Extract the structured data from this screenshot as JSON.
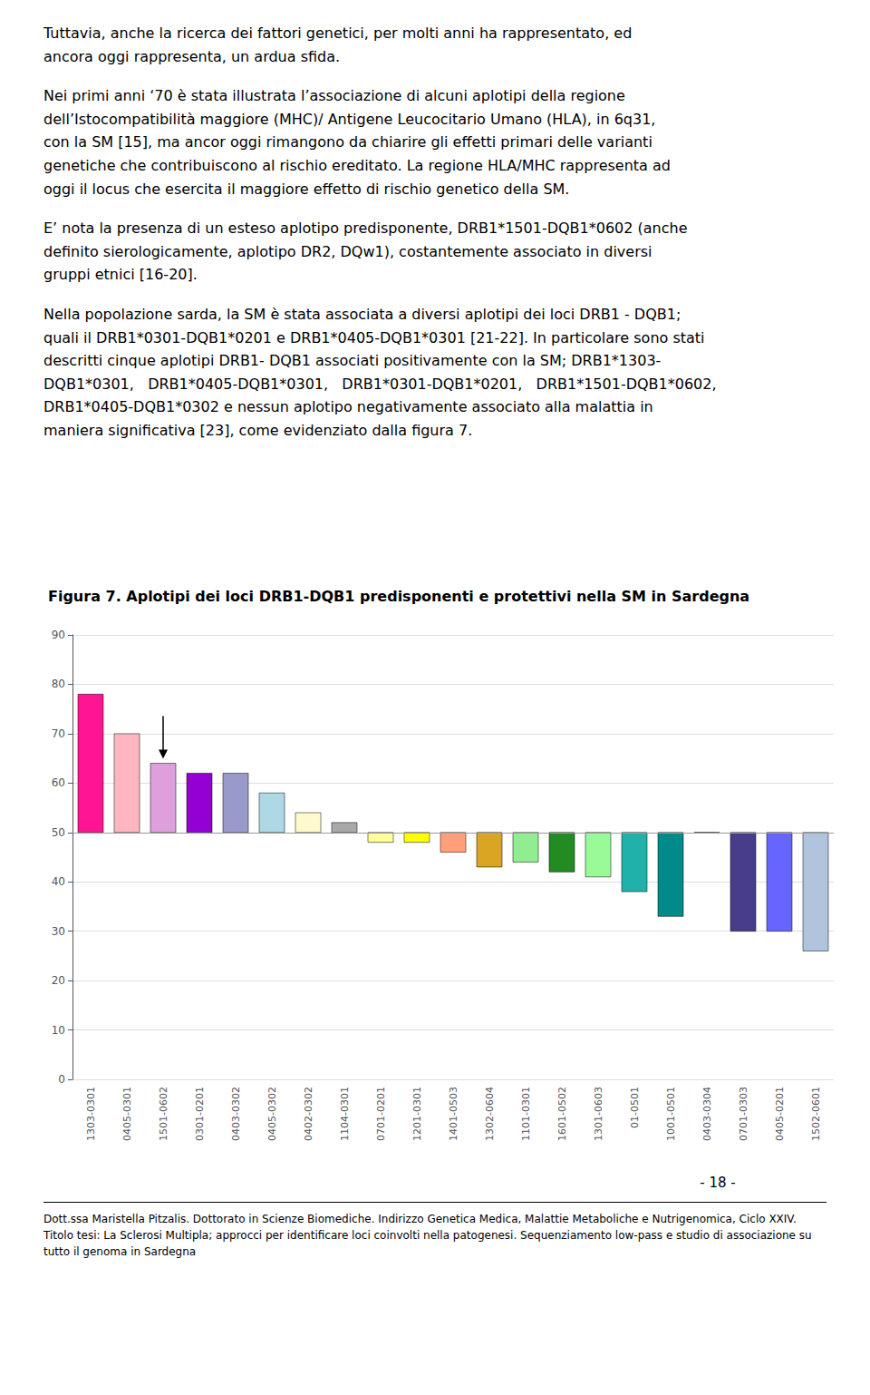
{
  "text": [
    "Tuttavia, anche la ricerca dei fattori genetici, per molti anni ha rappresentato, ed\nancora oggi rappresenta, un ardua sfida.",
    "Nei primi anni ‘70 è stata illustrata l’associazione di alcuni aplotipi della regione\ndell’Istocompatibilità maggiore (MHC)/ Antigene Leucocitario Umano (HLA), in 6q31,\ncon la SM [15], ma ancor oggi rimangono da chiarire gli effetti primari delle varianti\ngenetiche che contribuiscono al rischio ereditato. La regione HLA/MHC rappresenta ad\noggi il locus che esercita il maggiore effetto di rischio genetico della SM.",
    "E’ nota la presenza di un esteso aplotipo predisponente, DRB1*1501-DQB1*0602 (anche\ndefinito sierologicamente, aplotipo DR2, DQw1), costantemente associato in diversi\ngruppi etnici [16-20].",
    "Nella popolazione sarda, la SM è stata associata a diversi aplotipi dei loci DRB1 - DQB1;\nquali il DRB1*0301-DQB1*0201 e DRB1*0405-DQB1*0301 [21-22]. In particolare sono stati\ndescritti cinque aplotipi DRB1- DQB1 associati positivamente con la SM; DRB1*1303-\nDQB1*0301,   DRB1*0405-DQB1*0301,   DRB1*0301-DQB1*0201,   DRB1*1501-DQB1*0602,\nDRB1*0405-DQB1*0302 e nessun aplotipo negativamente associato alla malattia in\nmaniera significativa [23], come evidenziato dalla figura 7."
  ],
  "page_number": "- 18 -",
  "footer": "Dott.ssa Maristella Pitzalis. Dottorato in Scienze Biomediche. Indirizzo Genetica Medica, Malattie Metaboliche e Nutrigenomica, Ciclo XXIV. Titolo tesi: La Sclerosi Multipla; approcci per identificare loci coinvolti nella patogenesi. Sequenziamento low-pass e studio di associazione su tutto il genoma in Sardegna",
  "chart_data": {
    "type": "bar",
    "title": "Figura 7. Aplotipi dei loci DRB1-DQB1 predisponenti e protettivi nella SM in Sardegna",
    "categories": [
      "1303-0301",
      "0405-0301",
      "1501-0602",
      "0301-0201",
      "0403-0302",
      "0405-0302",
      "0402-0302",
      "1104-0301",
      "0701-0201",
      "1201-0301",
      "1401-0503",
      "1302-0604",
      "1101-0301",
      "1601-0502",
      "1301-0603",
      "01-0501",
      "1001-0501",
      "0403-0304",
      "0701-0303",
      "0405-0201",
      "1502-0601"
    ],
    "values": [
      78,
      70,
      64,
      62,
      62,
      58,
      54,
      52,
      48,
      48,
      46,
      43,
      44,
      42,
      41,
      38,
      33,
      50,
      30,
      30,
      26
    ],
    "colors": [
      "#FF1493",
      "#FFB6C1",
      "#DDA0DD",
      "#9400D3",
      "#9999CC",
      "#ADD8E6",
      "#FFFACD",
      "#A9A9A9",
      "#FFFF99",
      "#FFFF00",
      "#FFA07A",
      "#DAA520",
      "#90EE90",
      "#228B22",
      "#98FB98",
      "#20B2AA",
      "#008B8B",
      "#4B0082",
      "#483D8B",
      "#6666FF",
      "#B0C4DE"
    ],
    "baseline": 50,
    "arrow": "1501-0602",
    "ylim": [
      0,
      90
    ],
    "yticks": [
      0,
      10,
      20,
      30,
      40,
      50,
      60,
      70,
      80,
      90
    ],
    "grid": true
  }
}
